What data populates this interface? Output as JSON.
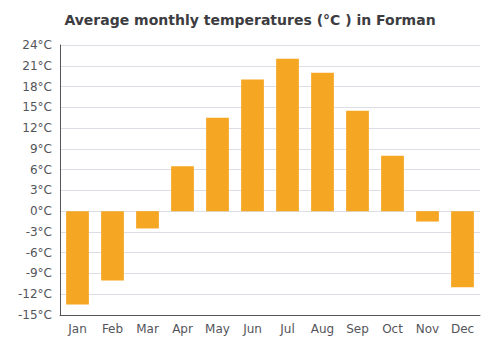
{
  "chart_data": {
    "type": "bar",
    "title": "Average monthly temperatures (°C ) in Forman",
    "categories": [
      "Jan",
      "Feb",
      "Mar",
      "Apr",
      "May",
      "Jun",
      "Jul",
      "Aug",
      "Sep",
      "Oct",
      "Nov",
      "Dec"
    ],
    "values": [
      -13.5,
      -10.0,
      -2.5,
      6.5,
      13.5,
      19.0,
      22.0,
      20.0,
      14.5,
      8.0,
      -1.5,
      -11.0
    ],
    "color": "#F5A623",
    "ylim": [
      -15,
      24
    ],
    "yticks": [
      {
        "value": -15,
        "label": "-15°C"
      },
      {
        "value": -12,
        "label": "-12°C"
      },
      {
        "value": -9,
        "label": "-9°C"
      },
      {
        "value": -6,
        "label": "-6°C"
      },
      {
        "value": -3,
        "label": "-3°C"
      },
      {
        "value": 0,
        "label": "0°C"
      },
      {
        "value": 3,
        "label": "3°C"
      },
      {
        "value": 6,
        "label": "6°C"
      },
      {
        "value": 9,
        "label": "9°C"
      },
      {
        "value": 12,
        "label": "12°C"
      },
      {
        "value": 15,
        "label": "15°C"
      },
      {
        "value": 18,
        "label": "18°C"
      },
      {
        "value": 21,
        "label": "21°C"
      },
      {
        "value": 24,
        "label": "24°C"
      }
    ],
    "grid": true
  }
}
